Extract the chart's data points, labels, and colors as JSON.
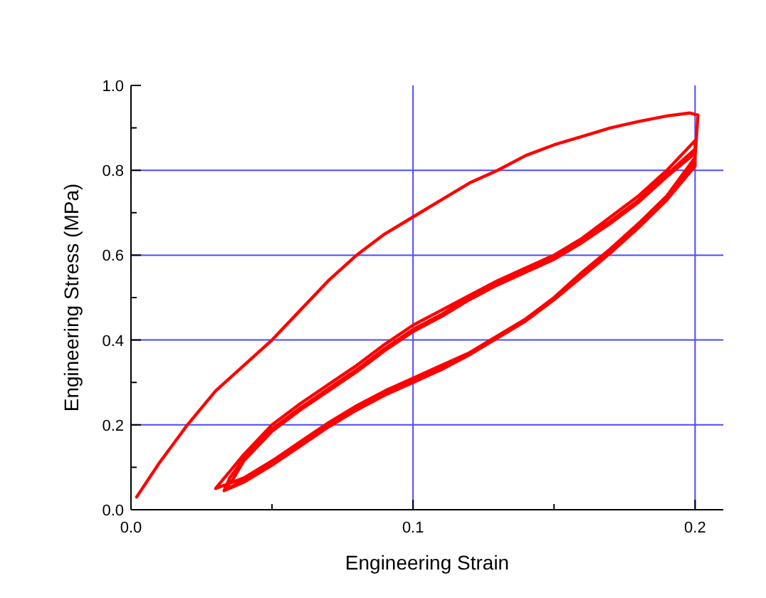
{
  "chart_data": {
    "type": "line",
    "xlabel": "Engineering Strain",
    "ylabel": "Engineering Stress (MPa)",
    "xlim": [
      0,
      0.21
    ],
    "ylim": [
      0,
      1
    ],
    "xticks": [
      {
        "value": 0,
        "label": "0.0"
      },
      {
        "value": 0.05,
        "label": null
      },
      0.1,
      {
        "value": 0.15,
        "label": null
      },
      0.2
    ],
    "yticks": [
      {
        "value": 0,
        "label": "0.0"
      },
      {
        "value": 0.1,
        "label": null
      },
      0.2,
      {
        "value": 0.3,
        "label": null
      },
      0.4,
      {
        "value": 0.5,
        "label": null
      },
      0.6,
      {
        "value": 0.7,
        "label": null
      },
      0.8,
      {
        "value": 0.9,
        "label": null
      },
      {
        "value": 1,
        "label": "1.0"
      }
    ],
    "grid": true,
    "marker": "none",
    "line_style": "solid",
    "series": [
      {
        "color": "#ff0000",
        "x": [
          0.002,
          0.01,
          0.02,
          0.03,
          0.04,
          0.05,
          0.06,
          0.07,
          0.08,
          0.09,
          0.1,
          0.11,
          0.12,
          0.13,
          0.14,
          0.15,
          0.16,
          0.17,
          0.18,
          0.19,
          0.198,
          0.201,
          0.2,
          0.19,
          0.18,
          0.17,
          0.16,
          0.15,
          0.14,
          0.13,
          0.12,
          0.11,
          0.1,
          0.09,
          0.08,
          0.07,
          0.06,
          0.05,
          0.04,
          0.03,
          0.035,
          0.04,
          0.05,
          0.06,
          0.07,
          0.08,
          0.09,
          0.1,
          0.11,
          0.12,
          0.13,
          0.14,
          0.15,
          0.16,
          0.17,
          0.18,
          0.19,
          0.2,
          0.2,
          0.19,
          0.18,
          0.17,
          0.16,
          0.15,
          0.14,
          0.13,
          0.12,
          0.11,
          0.1,
          0.09,
          0.08,
          0.07,
          0.06,
          0.05,
          0.04,
          0.033,
          0.035,
          0.04,
          0.05,
          0.06,
          0.07,
          0.08,
          0.09,
          0.1,
          0.11,
          0.12,
          0.13,
          0.14,
          0.15,
          0.16,
          0.17,
          0.18,
          0.19,
          0.2,
          0.2,
          0.19,
          0.18,
          0.17,
          0.16,
          0.15,
          0.14,
          0.13,
          0.12,
          0.11,
          0.1,
          0.09,
          0.08,
          0.07,
          0.06,
          0.05,
          0.04,
          0.033,
          0.036,
          0.04,
          0.05,
          0.06,
          0.07,
          0.08,
          0.09,
          0.1,
          0.11,
          0.12,
          0.13,
          0.14,
          0.15,
          0.16,
          0.17,
          0.18,
          0.19,
          0.2
        ],
        "values": [
          0.03,
          0.11,
          0.2,
          0.28,
          0.34,
          0.4,
          0.47,
          0.54,
          0.6,
          0.65,
          0.69,
          0.73,
          0.77,
          0.8,
          0.835,
          0.86,
          0.88,
          0.9,
          0.915,
          0.928,
          0.935,
          0.93,
          0.83,
          0.74,
          0.675,
          0.615,
          0.56,
          0.5,
          0.45,
          0.41,
          0.37,
          0.34,
          0.31,
          0.28,
          0.245,
          0.205,
          0.16,
          0.115,
          0.075,
          0.05,
          0.09,
          0.13,
          0.2,
          0.25,
          0.295,
          0.34,
          0.39,
          0.435,
          0.47,
          0.505,
          0.54,
          0.57,
          0.6,
          0.64,
          0.69,
          0.74,
          0.8,
          0.87,
          0.82,
          0.735,
          0.67,
          0.61,
          0.555,
          0.5,
          0.45,
          0.41,
          0.37,
          0.335,
          0.305,
          0.275,
          0.24,
          0.2,
          0.155,
          0.11,
          0.07,
          0.045,
          0.075,
          0.12,
          0.19,
          0.24,
          0.285,
          0.33,
          0.38,
          0.425,
          0.46,
          0.5,
          0.535,
          0.565,
          0.595,
          0.635,
          0.68,
          0.73,
          0.79,
          0.85,
          0.81,
          0.73,
          0.665,
          0.605,
          0.55,
          0.495,
          0.445,
          0.405,
          0.365,
          0.33,
          0.3,
          0.27,
          0.235,
          0.195,
          0.15,
          0.105,
          0.065,
          0.045,
          0.07,
          0.115,
          0.185,
          0.235,
          0.28,
          0.325,
          0.375,
          0.42,
          0.455,
          0.495,
          0.53,
          0.56,
          0.59,
          0.63,
          0.675,
          0.725,
          0.785,
          0.84
        ]
      }
    ]
  }
}
